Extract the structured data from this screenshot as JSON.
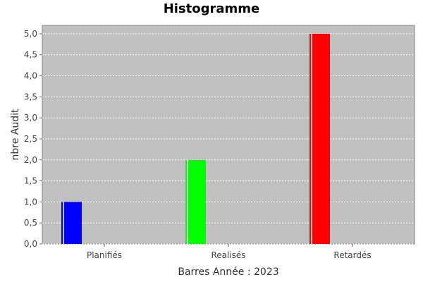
{
  "chart_data": {
    "type": "bar",
    "title": "Histogramme",
    "xlabel": "Barres Année : 2023",
    "ylabel": "nbre Audit",
    "categories": [
      "Planifiés",
      "Realisés",
      "Retardés"
    ],
    "series": [
      {
        "values": [
          1,
          2,
          5
        ],
        "colors": [
          "#0000ff",
          "#00ff00",
          "#ff0000"
        ]
      }
    ],
    "ylim": [
      0,
      5.2
    ],
    "yticks": [
      "0,0",
      "0,5",
      "1,0",
      "1,5",
      "2,0",
      "2,5",
      "3,0",
      "3,5",
      "4,0",
      "4,5",
      "5,0"
    ],
    "grid": true,
    "legend": "none",
    "plot_background": "#c0c0c0"
  }
}
